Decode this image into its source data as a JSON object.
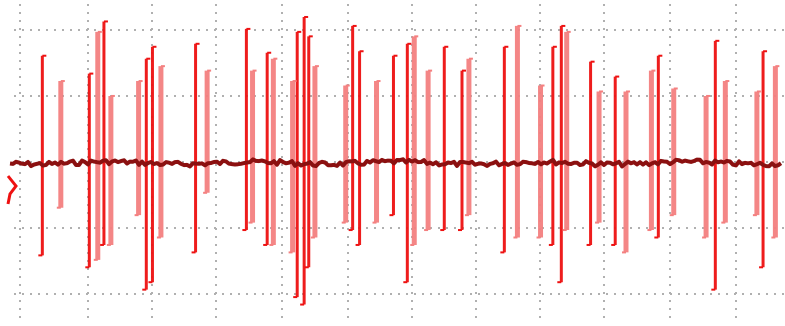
{
  "chart_data": {
    "type": "line",
    "title": "",
    "xlabel": "",
    "ylabel": "",
    "grid": true,
    "legend": "none",
    "grid_style": "dotted",
    "colors": {
      "baseline": "#8b1010",
      "spike_primary": "#ee1111",
      "spike_secondary": "#f48080",
      "grid": "#b0b0b0"
    },
    "ylim": [
      -1.0,
      1.0
    ],
    "xlim": [
      0,
      100
    ],
    "baseline_level": 0.0,
    "spike_series": [
      {
        "role": "primary",
        "spikes": [
          {
            "x": 4.2,
            "hi": 0.72,
            "lo": -0.62
          },
          {
            "x": 10.3,
            "hi": 0.6,
            "lo": -0.7
          },
          {
            "x": 12.2,
            "hi": 0.95,
            "lo": -0.55
          },
          {
            "x": 17.7,
            "hi": 0.7,
            "lo": -0.85
          },
          {
            "x": 18.5,
            "hi": 0.78,
            "lo": -0.8
          },
          {
            "x": 24.1,
            "hi": 0.8,
            "lo": -0.6
          },
          {
            "x": 30.7,
            "hi": 0.9,
            "lo": -0.45
          },
          {
            "x": 33.4,
            "hi": 0.74,
            "lo": -0.55
          },
          {
            "x": 37.3,
            "hi": 0.88,
            "lo": -0.9
          },
          {
            "x": 38.2,
            "hi": 0.98,
            "lo": -0.95
          },
          {
            "x": 38.8,
            "hi": 0.85,
            "lo": -0.7
          },
          {
            "x": 44.5,
            "hi": 0.92,
            "lo": -0.45
          },
          {
            "x": 45.4,
            "hi": 0.75,
            "lo": -0.55
          },
          {
            "x": 49.8,
            "hi": 0.72,
            "lo": -0.35
          },
          {
            "x": 51.6,
            "hi": 0.8,
            "lo": -0.8
          },
          {
            "x": 56.4,
            "hi": 0.78,
            "lo": -0.45
          },
          {
            "x": 58.7,
            "hi": 0.62,
            "lo": -0.45
          },
          {
            "x": 64.2,
            "hi": 0.78,
            "lo": -0.6
          },
          {
            "x": 70.5,
            "hi": 0.78,
            "lo": -0.55
          },
          {
            "x": 71.6,
            "hi": 0.92,
            "lo": -0.8
          },
          {
            "x": 75.4,
            "hi": 0.68,
            "lo": -0.55
          },
          {
            "x": 78.6,
            "hi": 0.58,
            "lo": -0.55
          },
          {
            "x": 84.2,
            "hi": 0.72,
            "lo": -0.5
          },
          {
            "x": 91.6,
            "hi": 0.82,
            "lo": -0.85
          },
          {
            "x": 97.8,
            "hi": 0.75,
            "lo": -0.7
          }
        ]
      },
      {
        "role": "secondary",
        "spikes": [
          {
            "x": 6.6,
            "hi": 0.55,
            "lo": -0.3
          },
          {
            "x": 11.4,
            "hi": 0.88,
            "lo": -0.65
          },
          {
            "x": 13.1,
            "hi": 0.45,
            "lo": -0.55
          },
          {
            "x": 16.7,
            "hi": 0.55,
            "lo": -0.35
          },
          {
            "x": 19.6,
            "hi": 0.65,
            "lo": -0.5
          },
          {
            "x": 25.6,
            "hi": 0.62,
            "lo": -0.2
          },
          {
            "x": 31.5,
            "hi": 0.62,
            "lo": -0.4
          },
          {
            "x": 34.2,
            "hi": 0.7,
            "lo": -0.55
          },
          {
            "x": 36.7,
            "hi": 0.55,
            "lo": -0.6
          },
          {
            "x": 39.6,
            "hi": 0.65,
            "lo": -0.5
          },
          {
            "x": 43.6,
            "hi": 0.52,
            "lo": -0.4
          },
          {
            "x": 47.6,
            "hi": 0.55,
            "lo": -0.4
          },
          {
            "x": 52.5,
            "hi": 0.85,
            "lo": -0.55
          },
          {
            "x": 54.3,
            "hi": 0.62,
            "lo": -0.45
          },
          {
            "x": 59.6,
            "hi": 0.7,
            "lo": -0.35
          },
          {
            "x": 65.9,
            "hi": 0.92,
            "lo": -0.5
          },
          {
            "x": 68.9,
            "hi": 0.52,
            "lo": -0.5
          },
          {
            "x": 72.3,
            "hi": 0.88,
            "lo": -0.45
          },
          {
            "x": 76.5,
            "hi": 0.48,
            "lo": -0.4
          },
          {
            "x": 80.0,
            "hi": 0.48,
            "lo": -0.6
          },
          {
            "x": 83.3,
            "hi": 0.62,
            "lo": -0.45
          },
          {
            "x": 86.2,
            "hi": 0.5,
            "lo": -0.35
          },
          {
            "x": 90.4,
            "hi": 0.45,
            "lo": -0.5
          },
          {
            "x": 92.9,
            "hi": 0.55,
            "lo": -0.4
          },
          {
            "x": 97.0,
            "hi": 0.48,
            "lo": -0.35
          },
          {
            "x": 99.4,
            "hi": 0.65,
            "lo": -0.5
          }
        ]
      }
    ]
  }
}
